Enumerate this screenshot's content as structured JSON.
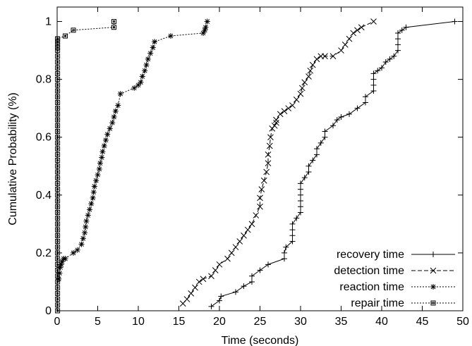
{
  "chart_data": {
    "type": "line",
    "xlabel": "Time (seconds)",
    "ylabel": "Cumulative Probability (%)",
    "xlim": [
      0,
      50
    ],
    "ylim": [
      0,
      1.05
    ],
    "x_ticks": [
      0,
      5,
      10,
      15,
      20,
      25,
      30,
      35,
      40,
      45,
      50
    ],
    "y_ticks": [
      0,
      0.2,
      0.4,
      0.6,
      0.8,
      1
    ],
    "x_tick_labels": [
      "0",
      "5",
      "10",
      "15",
      "20",
      "25",
      "30",
      "35",
      "40",
      "45",
      "50"
    ],
    "y_tick_labels": [
      "0",
      "0.2",
      "0.4",
      "0.6",
      "0.8",
      "1"
    ],
    "grid": false,
    "legend_position": "bottom-right",
    "series": [
      {
        "name": "recovery time",
        "line_style": "solid",
        "marker": "plus",
        "x": [
          19.0,
          20.0,
          20.2,
          22.0,
          23.0,
          24.0,
          24.0,
          25.0,
          26.0,
          28.0,
          28.0,
          28.2,
          29.0,
          29.0,
          29.0,
          29.0,
          29.5,
          30.0,
          30.0,
          30.0,
          30.0,
          30.0,
          30.0,
          30.5,
          31.0,
          31.0,
          31.5,
          32.0,
          32.0,
          32.5,
          33.0,
          33.0,
          34.0,
          34.5,
          35.0,
          36.0,
          37.0,
          38.0,
          38.0,
          39.0,
          39.0,
          39.0,
          39.0,
          39.5,
          40.0,
          40.5,
          41.0,
          41.5,
          42.0,
          42.0,
          42.0,
          42.0,
          42.5,
          43.0,
          49.0
        ],
        "y": [
          0.015,
          0.035,
          0.05,
          0.065,
          0.085,
          0.1,
          0.12,
          0.14,
          0.16,
          0.18,
          0.2,
          0.22,
          0.24,
          0.26,
          0.28,
          0.3,
          0.32,
          0.34,
          0.36,
          0.38,
          0.4,
          0.42,
          0.44,
          0.46,
          0.48,
          0.5,
          0.52,
          0.54,
          0.56,
          0.58,
          0.6,
          0.62,
          0.64,
          0.66,
          0.67,
          0.68,
          0.7,
          0.72,
          0.74,
          0.76,
          0.78,
          0.8,
          0.82,
          0.83,
          0.84,
          0.86,
          0.87,
          0.88,
          0.9,
          0.92,
          0.94,
          0.96,
          0.97,
          0.98,
          1.0
        ]
      },
      {
        "name": "detection time",
        "line_style": "dashed",
        "marker": "cross",
        "x": [
          15.5,
          16.0,
          16.5,
          17.0,
          17.5,
          18.0,
          19.0,
          19.5,
          20.0,
          21.0,
          21.5,
          22.0,
          22.5,
          23.0,
          23.5,
          24.0,
          24.5,
          25.0,
          25.0,
          25.2,
          25.5,
          25.8,
          26.0,
          26.0,
          26.2,
          26.3,
          26.5,
          26.8,
          27.0,
          27.0,
          27.5,
          28.0,
          28.5,
          29.0,
          29.5,
          30.0,
          30.2,
          30.5,
          31.0,
          31.2,
          31.5,
          32.0,
          32.5,
          33.0,
          34.0,
          35.0,
          35.5,
          36.0,
          36.5,
          37.0,
          37.5,
          39.0
        ],
        "y": [
          0.025,
          0.04,
          0.06,
          0.08,
          0.1,
          0.11,
          0.12,
          0.14,
          0.16,
          0.18,
          0.2,
          0.22,
          0.24,
          0.26,
          0.28,
          0.3,
          0.33,
          0.36,
          0.39,
          0.42,
          0.45,
          0.48,
          0.51,
          0.54,
          0.57,
          0.6,
          0.63,
          0.64,
          0.65,
          0.66,
          0.68,
          0.69,
          0.7,
          0.71,
          0.73,
          0.75,
          0.77,
          0.79,
          0.81,
          0.83,
          0.85,
          0.87,
          0.88,
          0.88,
          0.88,
          0.9,
          0.92,
          0.94,
          0.96,
          0.97,
          0.98,
          1.0
        ]
      },
      {
        "name": "reaction time",
        "line_style": "dotted",
        "marker": "star",
        "x": [
          0.2,
          0.3,
          0.4,
          0.5,
          0.6,
          0.8,
          1.0,
          2.0,
          2.5,
          3.0,
          3.2,
          3.4,
          3.5,
          3.6,
          3.8,
          4.0,
          4.2,
          4.4,
          4.5,
          4.6,
          4.8,
          5.0,
          5.2,
          5.3,
          5.5,
          5.6,
          5.8,
          6.0,
          6.2,
          6.5,
          6.8,
          7.0,
          7.2,
          7.5,
          7.8,
          9.5,
          10.0,
          10.3,
          10.5,
          10.8,
          11.0,
          11.2,
          11.5,
          11.8,
          12.0,
          14.0,
          18.0,
          18.2,
          18.3,
          18.5
        ],
        "y": [
          0.11,
          0.13,
          0.15,
          0.16,
          0.17,
          0.18,
          0.18,
          0.2,
          0.21,
          0.23,
          0.25,
          0.27,
          0.29,
          0.31,
          0.33,
          0.35,
          0.37,
          0.39,
          0.41,
          0.43,
          0.45,
          0.47,
          0.49,
          0.51,
          0.53,
          0.55,
          0.57,
          0.59,
          0.61,
          0.63,
          0.65,
          0.67,
          0.69,
          0.71,
          0.75,
          0.77,
          0.78,
          0.79,
          0.81,
          0.83,
          0.85,
          0.87,
          0.89,
          0.91,
          0.93,
          0.95,
          0.96,
          0.97,
          0.98,
          1.0
        ]
      },
      {
        "name": "repair time",
        "line_style": "dotted",
        "marker": "square",
        "x": [
          0.05,
          0.05,
          0.05,
          0.05,
          0.05,
          0.05,
          0.05,
          0.05,
          0.05,
          0.05,
          0.05,
          0.05,
          0.05,
          0.05,
          0.05,
          0.05,
          0.05,
          0.05,
          0.05,
          0.05,
          0.05,
          0.05,
          0.05,
          0.05,
          0.05,
          0.05,
          0.05,
          0.05,
          0.05,
          0.05,
          0.05,
          0.05,
          0.05,
          0.05,
          0.05,
          0.05,
          0.05,
          0.05,
          0.05,
          0.05,
          0.05,
          0.05,
          0.05,
          0.05,
          0.05,
          0.05,
          0.05,
          0.05,
          0.05,
          0.05,
          0.05,
          1.0,
          2.0,
          7.0,
          7.0
        ],
        "y": [
          0.0,
          0.02,
          0.04,
          0.06,
          0.08,
          0.1,
          0.12,
          0.14,
          0.16,
          0.18,
          0.2,
          0.22,
          0.24,
          0.26,
          0.28,
          0.3,
          0.32,
          0.34,
          0.36,
          0.38,
          0.4,
          0.42,
          0.44,
          0.46,
          0.48,
          0.5,
          0.52,
          0.54,
          0.56,
          0.58,
          0.6,
          0.62,
          0.64,
          0.66,
          0.68,
          0.7,
          0.72,
          0.74,
          0.76,
          0.78,
          0.8,
          0.82,
          0.84,
          0.86,
          0.88,
          0.9,
          0.91,
          0.92,
          0.93,
          0.94,
          0.94,
          0.95,
          0.97,
          0.98,
          1.0
        ]
      }
    ]
  }
}
